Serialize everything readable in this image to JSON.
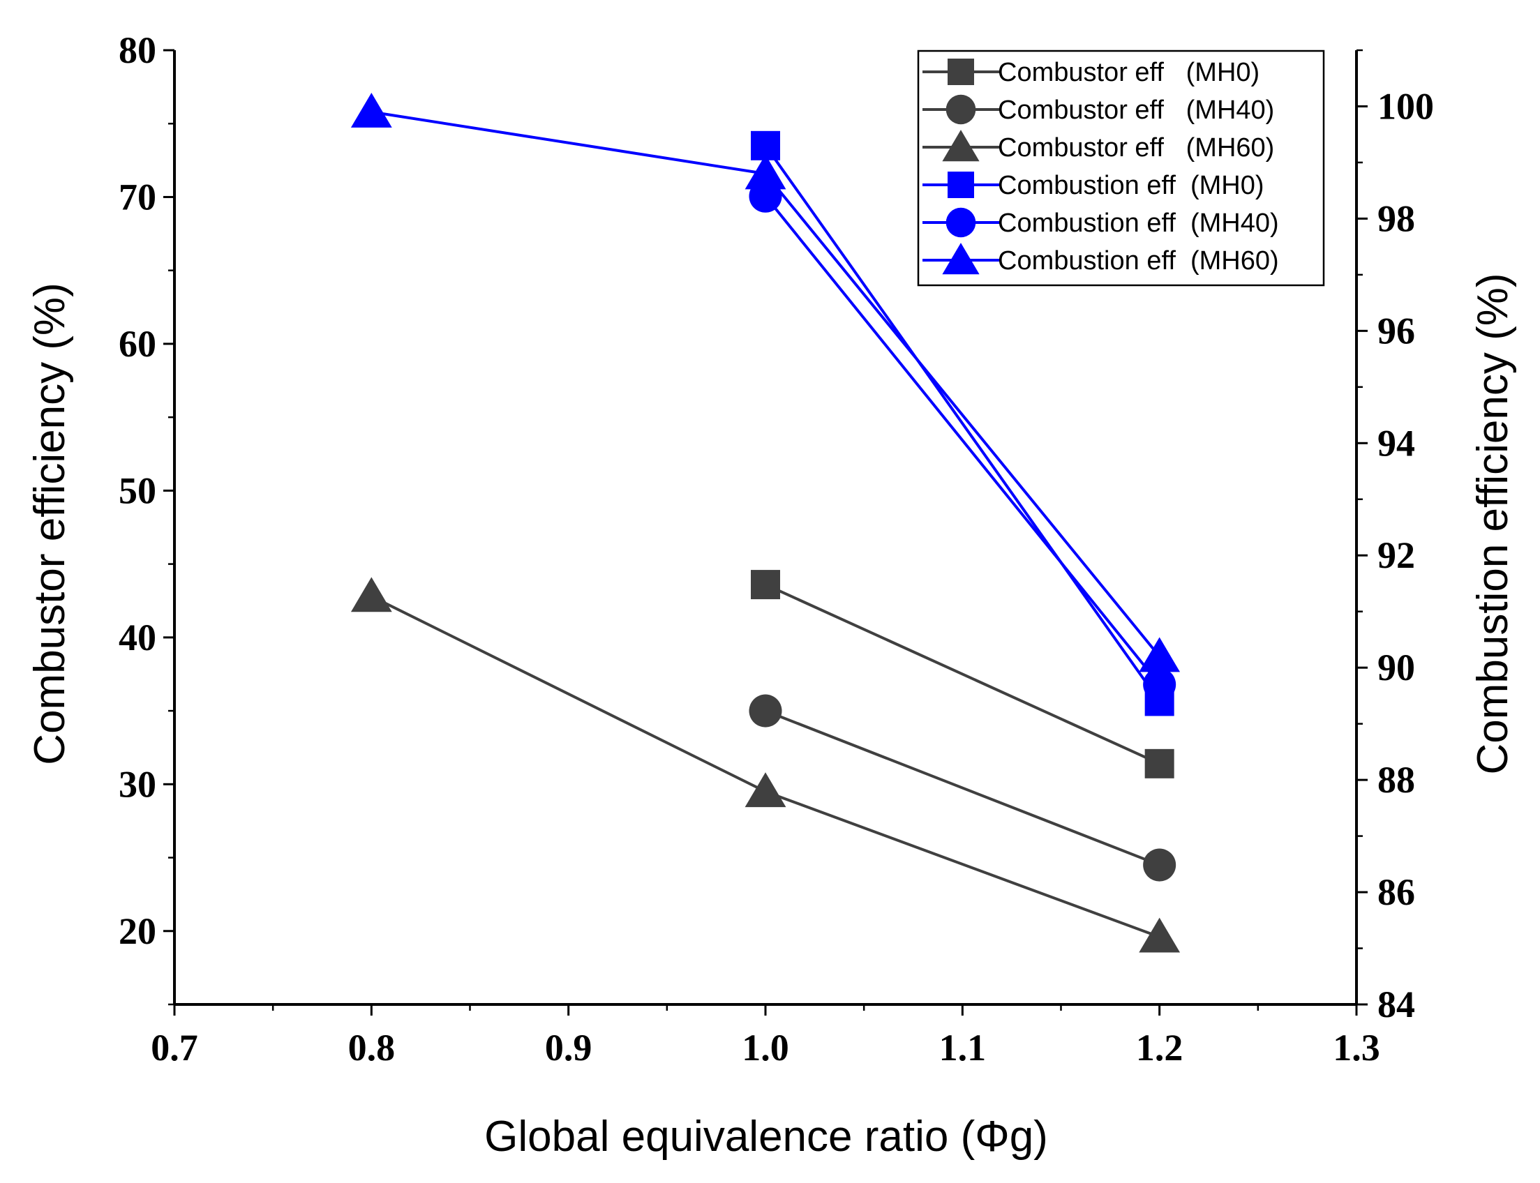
{
  "chart_data": {
    "type": "line",
    "title": "",
    "xlabel": "Global equivalence ratio (Φg)",
    "ylabel_left": "Combustor efficiency (%)",
    "ylabel_right": "Combustion efficiency (%)",
    "xlim": [
      0.7,
      1.3
    ],
    "ylim_left": [
      15,
      80
    ],
    "ylim_right": [
      84,
      101
    ],
    "x_ticks": [
      "0.7",
      "0.8",
      "0.9",
      "1.0",
      "1.1",
      "1.2",
      "1.3"
    ],
    "y_left_ticks": [
      "20",
      "30",
      "40",
      "50",
      "60",
      "70",
      "80"
    ],
    "y_right_ticks": [
      "84",
      "86",
      "88",
      "90",
      "92",
      "94",
      "96",
      "98",
      "100"
    ],
    "legend_position": "top-right",
    "series": [
      {
        "name": "Combustor eff   (MH0)",
        "axis": "left",
        "marker": "square",
        "color": "#404040",
        "x": [
          1.0,
          1.2
        ],
        "y": [
          43.6,
          31.4
        ]
      },
      {
        "name": "Combustor eff   (MH40)",
        "axis": "left",
        "marker": "circle",
        "color": "#404040",
        "x": [
          1.0,
          1.2
        ],
        "y": [
          35.0,
          24.5
        ]
      },
      {
        "name": "Combustor eff   (MH60)",
        "axis": "left",
        "marker": "triangle",
        "color": "#404040",
        "x": [
          0.8,
          1.0,
          1.2
        ],
        "y": [
          42.8,
          29.5,
          19.6
        ]
      },
      {
        "name": "Combustion eff  (MH0)",
        "axis": "right",
        "marker": "square",
        "color": "#0000ff",
        "x": [
          1.0,
          1.2
        ],
        "y": [
          99.3,
          89.4
        ]
      },
      {
        "name": "Combustion eff  (MH40)",
        "axis": "right",
        "marker": "circle",
        "color": "#0000ff",
        "x": [
          1.0,
          1.2
        ],
        "y": [
          98.4,
          89.7
        ]
      },
      {
        "name": "Combustion eff  (MH60)",
        "axis": "right",
        "marker": "triangle",
        "color": "#0000ff",
        "x": [
          0.8,
          1.0,
          1.2
        ],
        "y": [
          99.9,
          98.8,
          90.2
        ]
      }
    ]
  }
}
